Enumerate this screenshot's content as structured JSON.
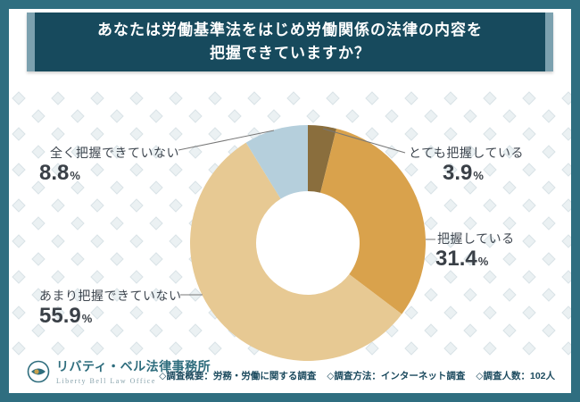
{
  "title": {
    "line1": "あなたは労働基準法をはじめ労働関係の法律の内容を",
    "line2": "把握できていますか？"
  },
  "colors": {
    "frame_border": "#2f6e80",
    "banner_bg": "#174a5d",
    "banner_edge": "#7ca1af",
    "pattern_diamond": "#ebf1f3"
  },
  "chart_data": {
    "type": "pie",
    "subtype": "donut",
    "title": "あなたは労働基準法をはじめ労働関係の法律の内容を把握できていますか？",
    "start_angle_deg": -90,
    "direction": "clockwise",
    "inner_radius_ratio": 0.44,
    "percent_sign": "%",
    "segments": [
      {
        "label": "とても把握している",
        "value": 3.9,
        "value_text": "3.9",
        "color": "#8a6e3d"
      },
      {
        "label": "把握している",
        "value": 31.4,
        "value_text": "31.4",
        "color": "#d9a24c"
      },
      {
        "label": "あまり把握できていない",
        "value": 55.9,
        "value_text": "55.9",
        "color": "#e7c993"
      },
      {
        "label": "全く把握できていない",
        "value": 8.8,
        "value_text": "8.8",
        "color": "#b5cfdc"
      }
    ]
  },
  "footer": {
    "logo_title": "リバティ・ベル法律事務所",
    "logo_subtitle": "Liberty Bell Law Office",
    "notes": [
      "◇調査概要：労務・労働に関する調査",
      "◇調査方法：インターネット調査",
      "◇調査人数：102人"
    ]
  }
}
